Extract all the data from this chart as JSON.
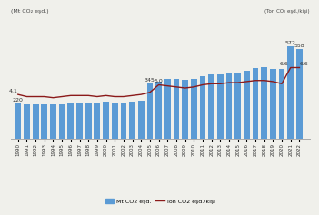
{
  "years": [
    1990,
    1991,
    1992,
    1993,
    1994,
    1995,
    1996,
    1997,
    1998,
    1999,
    2000,
    2001,
    2002,
    2003,
    2004,
    2005,
    2006,
    2007,
    2008,
    2009,
    2010,
    2011,
    2012,
    2013,
    2014,
    2015,
    2016,
    2017,
    2018,
    2019,
    2020,
    2021,
    2022
  ],
  "mt_co2": [
    220,
    210,
    211,
    212,
    211,
    214,
    219,
    221,
    223,
    223,
    229,
    225,
    226,
    230,
    235,
    345,
    351,
    370,
    368,
    362,
    371,
    389,
    395,
    400,
    406,
    411,
    420,
    435,
    440,
    434,
    430,
    572,
    558
  ],
  "ton_per_kisi": [
    4.1,
    3.9,
    3.9,
    3.9,
    3.8,
    3.9,
    4.0,
    4.0,
    4.0,
    3.9,
    4.0,
    3.9,
    3.9,
    4.0,
    4.1,
    4.3,
    5.0,
    4.9,
    4.8,
    4.7,
    4.8,
    5.0,
    5.1,
    5.1,
    5.2,
    5.2,
    5.3,
    5.4,
    5.4,
    5.3,
    5.1,
    6.6,
    6.6
  ],
  "bar_color": "#5b9bd5",
  "line_color": "#8b1a1a",
  "bar_annots": [
    [
      1990,
      "220"
    ],
    [
      2005,
      "345"
    ],
    [
      2021,
      "572"
    ],
    [
      2022,
      "558"
    ]
  ],
  "line_annots": [
    [
      1990,
      "4.1"
    ],
    [
      2006,
      "5.0"
    ],
    [
      2021,
      "6.6"
    ],
    [
      2022,
      "6.6"
    ]
  ],
  "ylabel_left": "(Mt CO₂ eşd.)",
  "ylabel_right": "(Ton CO₂ eşd./kişi)",
  "legend_bar": "Mt CO2 eşd.",
  "legend_line": "Ton CO2 eşd./kişi",
  "ylim_bar": [
    0,
    750
  ],
  "ylim_line_lo": 0,
  "ylim_line_hi": 11.25,
  "background_color": "#f0f0eb",
  "spine_color": "#aaaaaa"
}
